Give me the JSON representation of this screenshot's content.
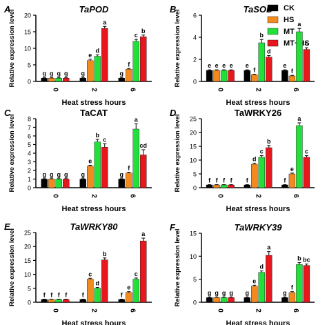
{
  "legend": {
    "position": "top-right",
    "items": [
      {
        "label": "CK",
        "color": "#000000"
      },
      {
        "label": "HS",
        "color": "#f28a1e"
      },
      {
        "label": "MT",
        "color": "#22e03a"
      },
      {
        "label": "MT+HS",
        "color": "#e8161d"
      }
    ]
  },
  "chart_data": [
    {
      "type": "bar",
      "panel": "A",
      "title": "TaPOD",
      "title_italic": true,
      "xlabel": "Heat stress hours",
      "ylabel": "Relative expression level",
      "categories": [
        "0",
        "2",
        "6"
      ],
      "ylim": [
        0,
        20
      ],
      "yticks": [
        0,
        5,
        10,
        15,
        20
      ],
      "series": [
        {
          "name": "CK",
          "values": [
            1.0,
            1.0,
            1.0
          ],
          "errors": [
            0.1,
            0.1,
            0.1
          ],
          "letters": [
            "g",
            "g",
            "g"
          ]
        },
        {
          "name": "HS",
          "values": [
            1.0,
            6.3,
            3.7
          ],
          "errors": [
            0.1,
            0.4,
            0.2
          ],
          "letters": [
            "g",
            "e",
            "f"
          ]
        },
        {
          "name": "MT",
          "values": [
            1.0,
            7.6,
            12.1
          ],
          "errors": [
            0.1,
            0.4,
            0.6
          ],
          "letters": [
            "g",
            "d",
            "c"
          ]
        },
        {
          "name": "MT+HS",
          "values": [
            1.0,
            16.0,
            13.5
          ],
          "errors": [
            0.1,
            0.6,
            0.5
          ],
          "letters": [
            "g",
            "a",
            "b"
          ]
        }
      ]
    },
    {
      "type": "bar",
      "panel": "B",
      "title": "TaSOD",
      "title_italic": true,
      "xlabel": "Heat stress hours",
      "ylabel": "Relative expression level",
      "categories": [
        "0",
        "2",
        "6"
      ],
      "ylim": [
        0,
        6
      ],
      "yticks": [
        0,
        2,
        4,
        6
      ],
      "series": [
        {
          "name": "CK",
          "values": [
            1.0,
            1.0,
            1.0
          ],
          "errors": [
            0.05,
            0.05,
            0.05
          ],
          "letters": [
            "e",
            "e",
            "e"
          ]
        },
        {
          "name": "HS",
          "values": [
            1.0,
            0.6,
            0.5
          ],
          "errors": [
            0.05,
            0.05,
            0.05
          ],
          "letters": [
            "e",
            "f",
            "f"
          ]
        },
        {
          "name": "MT",
          "values": [
            1.0,
            3.5,
            4.5
          ],
          "errors": [
            0.05,
            0.3,
            0.3
          ],
          "letters": [
            "e",
            "b",
            "a"
          ]
        },
        {
          "name": "MT+HS",
          "values": [
            1.0,
            2.2,
            2.9
          ],
          "errors": [
            0.05,
            0.15,
            0.15
          ],
          "letters": [
            "e",
            "d",
            "c"
          ]
        }
      ]
    },
    {
      "type": "bar",
      "panel": "C",
      "title": "TaCAT",
      "title_italic": false,
      "xlabel": "Heat stress hours",
      "ylabel": "Relative expression level",
      "categories": [
        "0",
        "2",
        "6"
      ],
      "ylim": [
        0,
        8
      ],
      "yticks": [
        0,
        1,
        2,
        3,
        4,
        5,
        6,
        7,
        8
      ],
      "series": [
        {
          "name": "CK",
          "values": [
            1.0,
            1.0,
            1.0
          ],
          "errors": [
            0.05,
            0.05,
            0.05
          ],
          "letters": [
            "g",
            "g",
            "g"
          ]
        },
        {
          "name": "HS",
          "values": [
            1.0,
            2.5,
            1.7
          ],
          "errors": [
            0.05,
            0.1,
            0.1
          ],
          "letters": [
            "g",
            "e",
            "f"
          ]
        },
        {
          "name": "MT",
          "values": [
            1.0,
            5.3,
            6.8
          ],
          "errors": [
            0.05,
            0.3,
            0.6
          ],
          "letters": [
            "g",
            "b",
            "a"
          ]
        },
        {
          "name": "MT+HS",
          "values": [
            1.0,
            4.7,
            3.8
          ],
          "errors": [
            0.05,
            0.4,
            0.6
          ],
          "letters": [
            "g",
            "c",
            "cd"
          ]
        }
      ]
    },
    {
      "type": "bar",
      "panel": "D",
      "title": "TaWRKY26",
      "title_italic": false,
      "xlabel": "Heat stress hours",
      "ylabel": "Relative expression level",
      "categories": [
        "0",
        "2",
        "6"
      ],
      "ylim": [
        0,
        25
      ],
      "yticks": [
        0,
        5,
        10,
        15,
        20,
        25
      ],
      "series": [
        {
          "name": "CK",
          "values": [
            1.0,
            1.0,
            1.0
          ],
          "errors": [
            0.1,
            0.1,
            0.1
          ],
          "letters": [
            "f",
            "f",
            "f"
          ]
        },
        {
          "name": "HS",
          "values": [
            1.0,
            8.5,
            5.0
          ],
          "errors": [
            0.1,
            0.4,
            0.3
          ],
          "letters": [
            "f",
            "d",
            "e"
          ]
        },
        {
          "name": "MT",
          "values": [
            1.0,
            11.0,
            22.5
          ],
          "errors": [
            0.1,
            0.6,
            1.0
          ],
          "letters": [
            "f",
            "c",
            "a"
          ]
        },
        {
          "name": "MT+HS",
          "values": [
            1.0,
            14.5,
            11.0
          ],
          "errors": [
            0.1,
            0.8,
            0.6
          ],
          "letters": [
            "f",
            "b",
            "c"
          ]
        }
      ]
    },
    {
      "type": "bar",
      "panel": "E",
      "title": "TaWRKY80",
      "title_italic": true,
      "xlabel": "Heat stress hours",
      "ylabel": "Relative expression level",
      "categories": [
        "0",
        "2",
        "6"
      ],
      "ylim": [
        0,
        25
      ],
      "yticks": [
        0,
        5,
        10,
        15,
        20,
        25
      ],
      "series": [
        {
          "name": "CK",
          "values": [
            1.0,
            1.0,
            1.0
          ],
          "errors": [
            0.1,
            0.1,
            0.1
          ],
          "letters": [
            "f",
            "f",
            "f"
          ]
        },
        {
          "name": "HS",
          "values": [
            1.0,
            8.3,
            3.5
          ],
          "errors": [
            0.1,
            0.3,
            0.3
          ],
          "letters": [
            "f",
            "c",
            "e"
          ]
        },
        {
          "name": "MT",
          "values": [
            1.0,
            5.0,
            8.3
          ],
          "errors": [
            0.1,
            0.3,
            0.4
          ],
          "letters": [
            "f",
            "d",
            "c"
          ]
        },
        {
          "name": "MT+HS",
          "values": [
            1.0,
            15.2,
            22.0
          ],
          "errors": [
            0.1,
            0.7,
            1.0
          ],
          "letters": [
            "f",
            "b",
            "a"
          ]
        }
      ]
    },
    {
      "type": "bar",
      "panel": "F",
      "title": "TaWRKY39",
      "title_italic": true,
      "xlabel": "Heat stress hours",
      "ylabel": "Relative expression level",
      "categories": [
        "0",
        "2",
        "6"
      ],
      "ylim": [
        0,
        15
      ],
      "yticks": [
        0,
        5,
        10,
        15
      ],
      "series": [
        {
          "name": "CK",
          "values": [
            1.0,
            1.0,
            1.0
          ],
          "errors": [
            0.1,
            0.1,
            0.1
          ],
          "letters": [
            "g",
            "g",
            "g"
          ]
        },
        {
          "name": "HS",
          "values": [
            1.0,
            3.5,
            2.1
          ],
          "errors": [
            0.1,
            0.2,
            0.2
          ],
          "letters": [
            "g",
            "e",
            "f"
          ]
        },
        {
          "name": "MT",
          "values": [
            1.0,
            6.5,
            8.2
          ],
          "errors": [
            0.1,
            0.3,
            0.4
          ],
          "letters": [
            "g",
            "d",
            "b"
          ]
        },
        {
          "name": "MT+HS",
          "values": [
            1.0,
            10.2,
            8.0
          ],
          "errors": [
            0.1,
            0.8,
            0.3
          ],
          "letters": [
            "g",
            "a",
            "bc"
          ]
        }
      ]
    }
  ]
}
